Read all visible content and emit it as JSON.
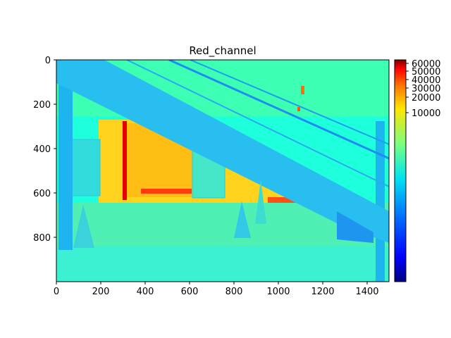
{
  "chart_data": {
    "type": "heatmap",
    "title": "Red_channel",
    "xlabel": "",
    "ylabel": "",
    "x_ticks": [
      0,
      200,
      400,
      600,
      800,
      1000,
      1200,
      1400
    ],
    "y_ticks": [
      0,
      200,
      400,
      600,
      800
    ],
    "xlim": [
      0,
      1500
    ],
    "ylim": [
      1000,
      0
    ],
    "colormap": "jet",
    "colorbar": {
      "scale": "log",
      "ticks": [
        60000,
        50000,
        40000,
        30000,
        20000,
        10000
      ],
      "tick_labels": [
        "60000",
        "50000",
        "40000",
        "30000",
        "20000",
        "10000"
      ],
      "range": [
        0,
        65535
      ]
    },
    "image_description": "false-color image of a staircase with railings, traffic cones, and open area under the stairs"
  },
  "colors": {
    "background": "#00ffdc",
    "stairs": "#1ec8f0",
    "warm_region": "#ffd21e",
    "hot": "#ff3c0a",
    "floor": "#3cf0c8"
  }
}
